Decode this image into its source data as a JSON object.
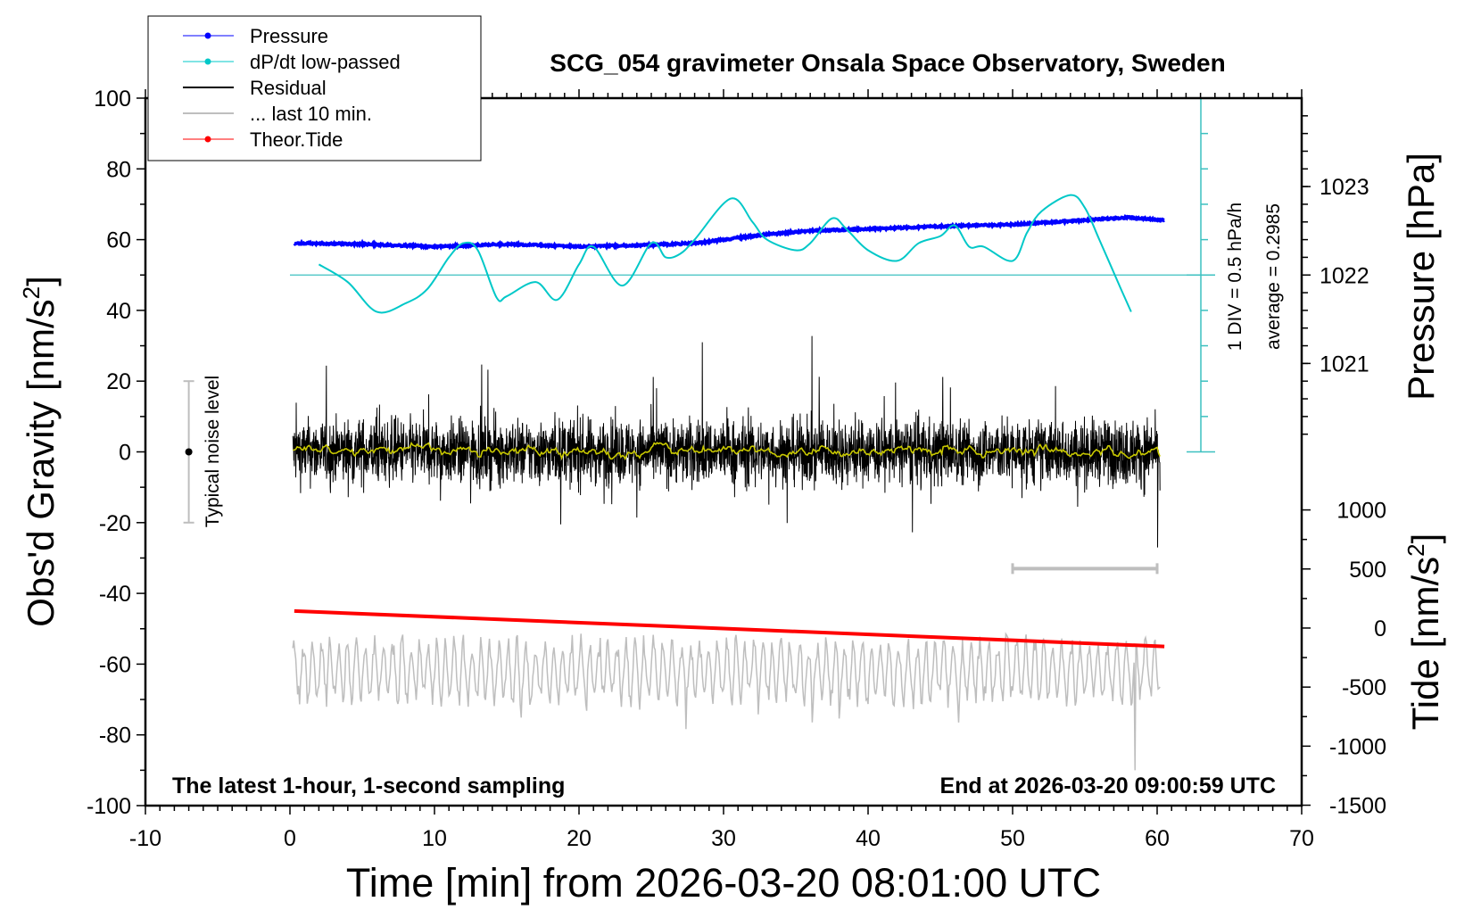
{
  "chart_data": {
    "type": "line",
    "title": "SCG_054 gravimeter Onsala Space Observatory, Sweden",
    "xlabel": "Time [min] from 2026-03-20 08:01:00 UTC",
    "ylabel": "Obs'd Gravity [nm/s",
    "ylabel_sup": "2",
    "ylabel_close": "]",
    "y2label": "Pressure [hPa]",
    "y3label": "Tide [nm/s",
    "y3label_sup": "2",
    "y3label_close": "]",
    "xlim": [
      -10,
      70
    ],
    "ylim": [
      -100,
      100
    ],
    "xticks": [
      "-10",
      "0",
      "10",
      "20",
      "30",
      "40",
      "50",
      "60",
      "70"
    ],
    "yticks": [
      "100",
      "80",
      "60",
      "40",
      "20",
      "0",
      "-20",
      "-40",
      "-60",
      "-80",
      "-100"
    ],
    "pressure_ticks": [
      "1023",
      "1022",
      "1021"
    ],
    "tide_ticks": [
      "1000",
      "500",
      "0",
      "-500",
      "-1000",
      "-1500"
    ],
    "note_left": "The latest 1-hour, 1-second sampling",
    "note_right": "End at 2026-03-20 09:00:59 UTC",
    "noise_label": "Typical noise level",
    "noise_level": [
      -20,
      20
    ],
    "dpdt_scale": "1 DIV = 0.5 hPa/h",
    "dpdt_average": "average = 0.2985",
    "grid": false,
    "legend_position": "top-left",
    "legend": [
      {
        "name": "Pressure",
        "color": "#0000ff",
        "marker": "dot"
      },
      {
        "name": "dP/dt low-passed",
        "color": "#00c8c8",
        "marker": "dot"
      },
      {
        "name": "Residual",
        "color": "#000000",
        "marker": "none"
      },
      {
        "name": "... last 10 min.",
        "color": "#bebebe",
        "marker": "none"
      },
      {
        "name": "Theor.Tide",
        "color": "#ff0000",
        "marker": "dot"
      }
    ],
    "series": [
      {
        "name": "Pressure",
        "unit": "hPa",
        "color": "#0000ff",
        "t": [
          0.3,
          5,
          10,
          15,
          20,
          25,
          28,
          30,
          33,
          36,
          40,
          45,
          50,
          53,
          56,
          58,
          60.5
        ],
        "values": [
          1022.36,
          1022.35,
          1022.32,
          1022.35,
          1022.32,
          1022.34,
          1022.36,
          1022.4,
          1022.46,
          1022.5,
          1022.52,
          1022.55,
          1022.57,
          1022.6,
          1022.63,
          1022.65,
          1022.62
        ]
      },
      {
        "name": "dP/dt low-passed",
        "unit": "hPa/h",
        "color": "#00c8c8",
        "t": [
          2,
          4,
          6,
          8,
          9.5,
          11,
          12,
          13,
          14.3,
          15,
          17,
          18.5,
          20,
          21,
          23,
          25,
          26,
          27,
          28,
          30.5,
          32,
          33,
          35,
          36,
          37.5,
          38.5,
          40,
          42,
          43.5,
          45,
          46,
          47,
          48,
          50,
          51,
          52,
          54,
          55,
          56,
          57.5,
          58.2
        ],
        "values": [
          0.15,
          -0.1,
          -0.52,
          -0.4,
          -0.2,
          0.25,
          0.45,
          0.35,
          -0.32,
          -0.3,
          -0.1,
          -0.35,
          0.15,
          0.4,
          -0.15,
          0.45,
          0.25,
          0.3,
          0.5,
          1.08,
          0.75,
          0.5,
          0.35,
          0.45,
          0.8,
          0.65,
          0.35,
          0.2,
          0.45,
          0.55,
          0.7,
          0.4,
          0.4,
          0.2,
          0.6,
          0.9,
          1.13,
          0.95,
          0.5,
          -0.2,
          -0.52
        ]
      },
      {
        "name": "Residual",
        "unit": "nm/s2",
        "color": "#000000"
      },
      {
        "name": "... last 10 min.",
        "unit": "nm/s2",
        "color": "#bebebe"
      },
      {
        "name": "Theor.Tide",
        "unit": "nm/s2",
        "color": "#ff0000",
        "t": [
          0.3,
          60.5
        ],
        "values": [
          144,
          -156
        ]
      }
    ],
    "residual_smooth_color": "#c8c800"
  }
}
